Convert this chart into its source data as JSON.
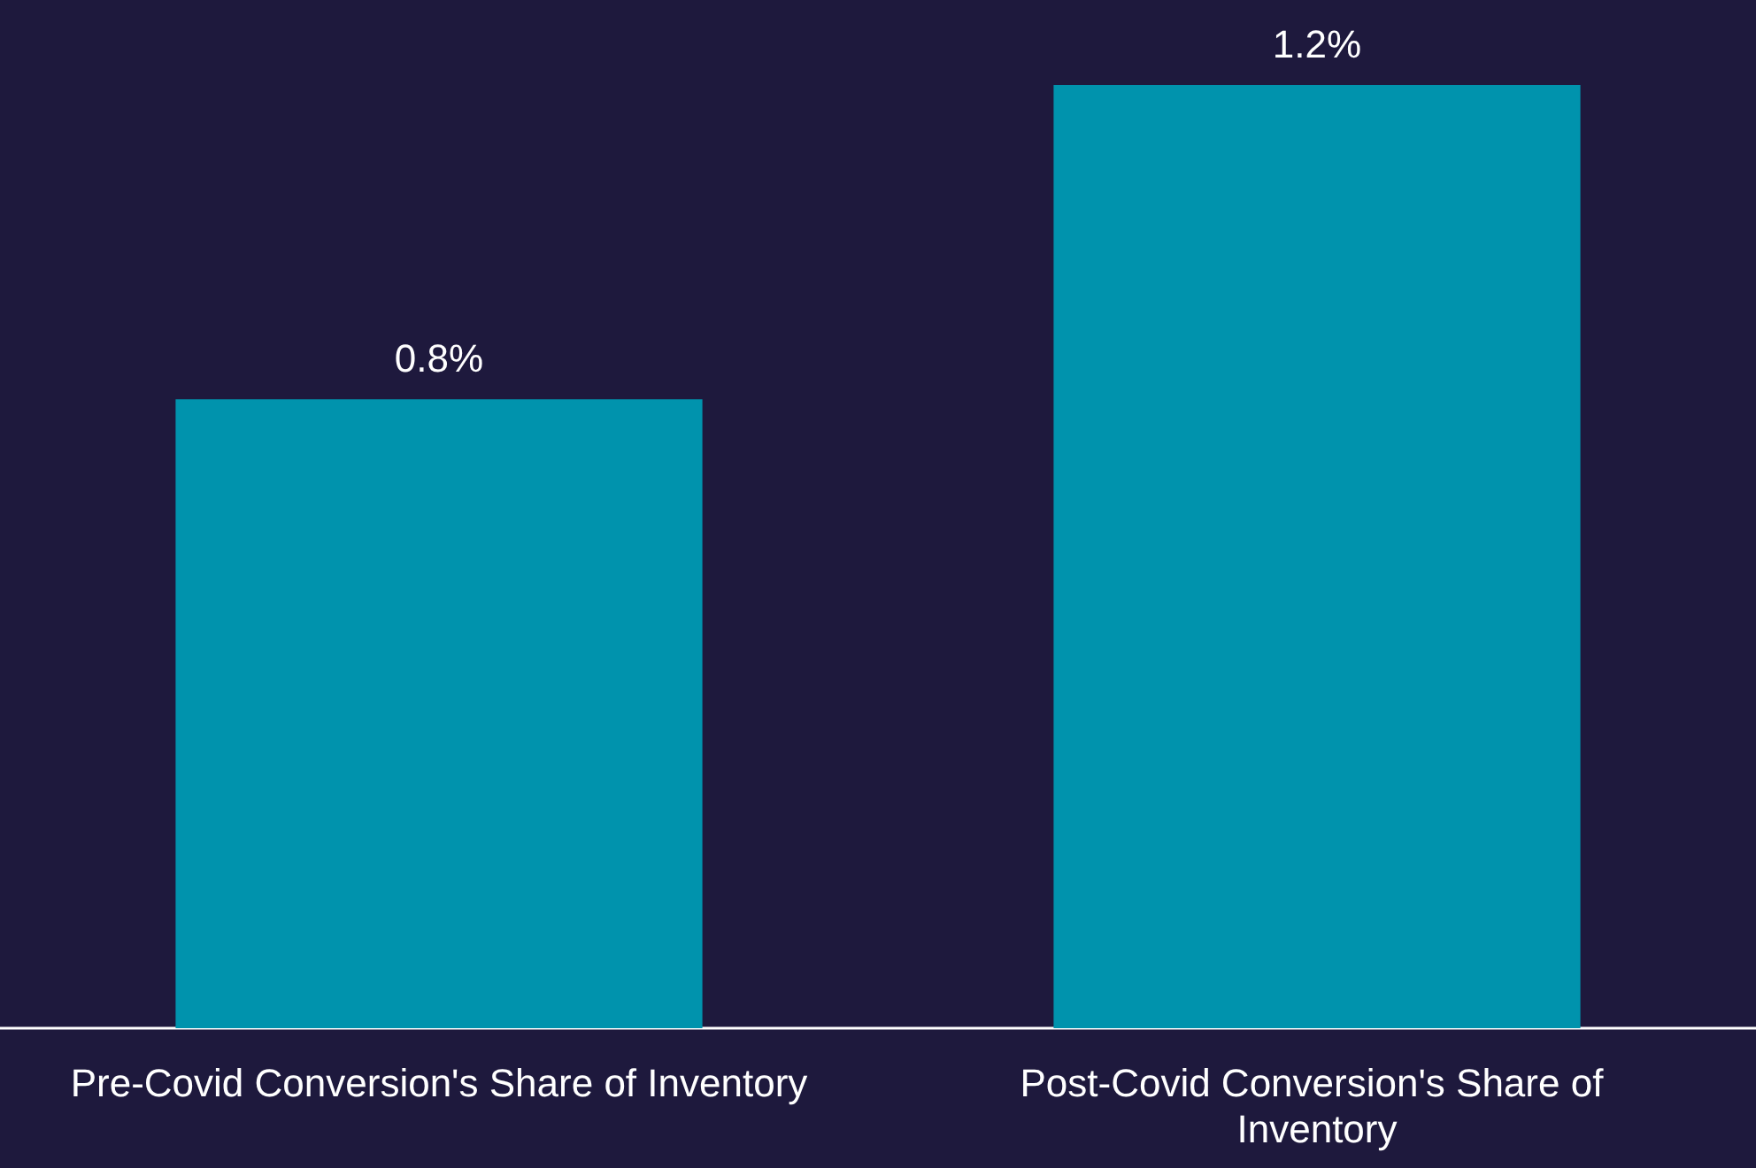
{
  "chart_data": {
    "type": "bar",
    "categories": [
      "Pre-Covid Conversion's Share of Inventory",
      "Post-Covid Conversion's Share of Inventory"
    ],
    "values": [
      0.8,
      1.2
    ],
    "value_labels": [
      "0.8%",
      "1.2%"
    ],
    "color": "#0093ad"
  }
}
